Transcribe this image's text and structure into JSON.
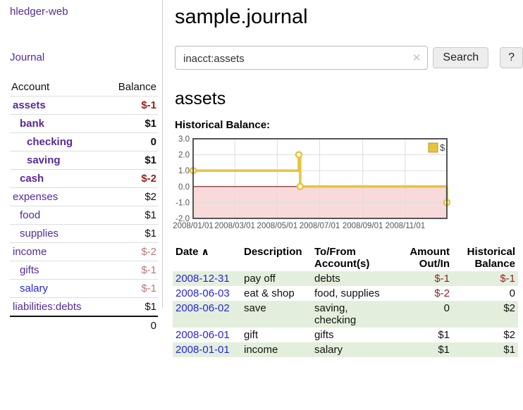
{
  "app": {
    "brand": "hledger-web",
    "nav_journal": "Journal"
  },
  "sidebar": {
    "header": {
      "account": "Account",
      "balance": "Balance"
    },
    "accounts": [
      {
        "label": "assets",
        "depth": 1,
        "bold": true,
        "balance": "$-1",
        "neg": "dark"
      },
      {
        "label": "bank",
        "depth": 2,
        "bold": true,
        "balance": "$1",
        "neg": "none"
      },
      {
        "label": "checking",
        "depth": 3,
        "bold": true,
        "balance": "0",
        "neg": "none"
      },
      {
        "label": "saving",
        "depth": 3,
        "bold": true,
        "balance": "$1",
        "neg": "none"
      },
      {
        "label": "cash",
        "depth": 2,
        "bold": true,
        "balance": "$-2",
        "neg": "dark"
      },
      {
        "label": "expenses",
        "depth": 1,
        "bold": false,
        "balance": "$2",
        "neg": "none"
      },
      {
        "label": "food",
        "depth": 2,
        "bold": false,
        "balance": "$1",
        "neg": "none"
      },
      {
        "label": "supplies",
        "depth": 2,
        "bold": false,
        "balance": "$1",
        "neg": "none"
      },
      {
        "label": "income",
        "depth": 1,
        "bold": false,
        "balance": "$-2",
        "neg": "light"
      },
      {
        "label": "gifts",
        "depth": 2,
        "bold": false,
        "balance": "$-1",
        "neg": "light"
      },
      {
        "label": "salary",
        "depth": 2,
        "bold": false,
        "balance": "$-1",
        "neg": "light",
        "blue": true
      },
      {
        "label": "liabilities:debts",
        "depth": 1,
        "bold": false,
        "balance": "$1",
        "neg": "none"
      }
    ],
    "total": "0"
  },
  "main": {
    "title": "sample.journal",
    "search": {
      "value": "inacct:assets",
      "clear_icon": "✕",
      "button": "Search",
      "help_button": "?"
    },
    "account_heading": "assets",
    "chart_heading": "Historical Balance:"
  },
  "chart_data": {
    "type": "line",
    "step": true,
    "title": "Historical Balance:",
    "legend": {
      "label": "$",
      "position": "top-right"
    },
    "xlim": [
      "2008-01-01",
      "2008-12-31"
    ],
    "ylim": [
      -2,
      3
    ],
    "y_ticks": [
      3.0,
      2.0,
      1.0,
      0.0,
      -1.0,
      -2.0
    ],
    "x_ticks": [
      "2008/01/01",
      "2008/03/01",
      "2008/05/01",
      "2008/07/01",
      "2008/09/01",
      "2008/11/01"
    ],
    "series": [
      {
        "name": "$",
        "points": [
          [
            "2008-01-01",
            1
          ],
          [
            "2008-06-01",
            2
          ],
          [
            "2008-06-03",
            0
          ],
          [
            "2008-12-31",
            -1
          ]
        ]
      }
    ],
    "colors": {
      "line": "#e8c33e",
      "marker_fill": "#ffffff",
      "legend_fill": "#e8c33e",
      "negative_area": "#f9dada",
      "zero_line": "#7d1414",
      "grid": "#ddd",
      "border": "#555",
      "tick_text": "#555"
    }
  },
  "register": {
    "columns": [
      "Date",
      "Description",
      "To/From Account(s)",
      "Amount Out/In",
      "Historical Balance"
    ],
    "sort_icon": "∧",
    "rows": [
      {
        "date": "2008-12-31",
        "description": "pay off",
        "accounts": "debts",
        "amount": "$-1",
        "amount_neg": true,
        "balance": "$-1",
        "balance_neg": true
      },
      {
        "date": "2008-06-03",
        "description": "eat & shop",
        "accounts": "food, supplies",
        "amount": "$-2",
        "amount_neg": true,
        "balance": "0",
        "balance_neg": false
      },
      {
        "date": "2008-06-02",
        "description": "save",
        "accounts": "saving, checking",
        "amount": "0",
        "amount_neg": false,
        "balance": "$2",
        "balance_neg": false
      },
      {
        "date": "2008-06-01",
        "description": "gift",
        "accounts": "gifts",
        "amount": "$1",
        "amount_neg": false,
        "balance": "$2",
        "balance_neg": false
      },
      {
        "date": "2008-01-01",
        "description": "income",
        "accounts": "salary",
        "amount": "$1",
        "amount_neg": false,
        "balance": "$1",
        "balance_neg": false
      }
    ]
  }
}
